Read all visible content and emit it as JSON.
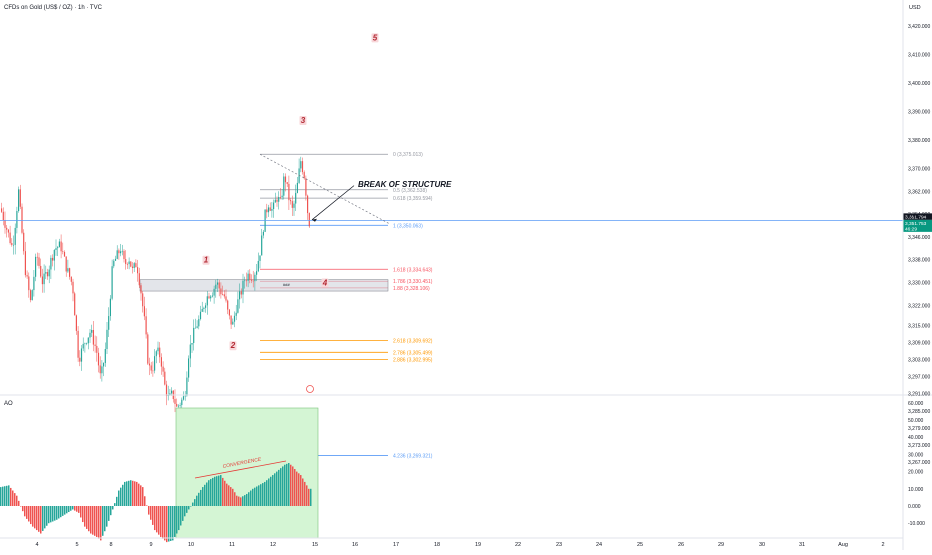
{
  "header": {
    "symbol_title": "CFDs on Gold (US$ / OZ) · 1h · TVC"
  },
  "price_axis": {
    "currency": "USD",
    "ticks": [
      "3,420.000",
      "3,410.000",
      "3,400.000",
      "3,390.000",
      "3,380.000",
      "3,370.000",
      "3,362.000",
      "3,354.000",
      "3,346.000",
      "3,338.000",
      "3,330.000",
      "3,322.000",
      "3,315.000",
      "3,309.000",
      "3,303.000",
      "3,297.000",
      "3,291.000",
      "3,285.000",
      "3,279.000",
      "3,273.000",
      "3,267.000"
    ],
    "last_price_label": "3,351.794",
    "current_price_label": "3,351.753",
    "countdown_label": "46:29"
  },
  "ao_panel": {
    "title": "AO",
    "ticks": [
      "60.000",
      "50.000",
      "40.000",
      "30.000",
      "20.000",
      "10.000",
      "0.000",
      "-10.000"
    ],
    "annotation": "CONVERGENCE"
  },
  "time_axis": {
    "labels": [
      "4",
      "5",
      "8",
      "9",
      "10",
      "11",
      "12",
      "15",
      "16",
      "17",
      "18",
      "19",
      "22",
      "23",
      "24",
      "25",
      "26",
      "29",
      "30",
      "31",
      "Aug",
      "2"
    ]
  },
  "annotations": {
    "wave_labels": [
      "1",
      "2",
      "3",
      "4",
      "5"
    ],
    "break_of_structure": "BREAK OF STRUCTURE",
    "small_box_label": "###",
    "fib_levels": [
      {
        "label": "0 (3,375.013)",
        "price": 3375.013,
        "color": "#9598a1"
      },
      {
        "label": "0.5 (3,362.538)",
        "price": 3362.538,
        "color": "#9598a1"
      },
      {
        "label": "0.618 (3,359.594)",
        "price": 3359.594,
        "color": "#9598a1"
      },
      {
        "label": "1 (3,350.063)",
        "price": 3350.063,
        "color": "#5b9cf6"
      },
      {
        "label": "1.618 (3,334.643)",
        "price": 3334.643,
        "color": "#f7525f"
      },
      {
        "label": "1.786 (3,330.451)",
        "price": 3330.451,
        "color": "#f7525f"
      },
      {
        "label": "1.88 (3,328.106)",
        "price": 3328.106,
        "color": "#f7525f"
      },
      {
        "label": "2.618 (3,309.692)",
        "price": 3309.692,
        "color": "#ff9800"
      },
      {
        "label": "2.786 (3,305.499)",
        "price": 3305.499,
        "color": "#ff9800"
      },
      {
        "label": "2.886 (3,302.995)",
        "price": 3302.995,
        "color": "#ff9800"
      },
      {
        "label": "4.236 (3,269.321)",
        "price": 3269.321,
        "color": "#5b9cf6"
      }
    ]
  },
  "colors": {
    "up": "#26a69a",
    "down": "#ef5350",
    "ao_up": "#26a69a",
    "ao_down": "#ef5350",
    "price_line": "#5b9cf6",
    "convergence_box": "#d4f5d4"
  },
  "chart_data": {
    "type": "candlestick",
    "title": "CFDs on Gold (US$ / OZ) · 1h · TVC",
    "ylim": [
      3264,
      3428
    ],
    "close_path": [
      [
        0,
        3356
      ],
      [
        6,
        3349
      ],
      [
        12,
        3342
      ],
      [
        18,
        3362
      ],
      [
        24,
        3336
      ],
      [
        30,
        3323
      ],
      [
        36,
        3340
      ],
      [
        42,
        3330
      ],
      [
        48,
        3335
      ],
      [
        54,
        3342
      ],
      [
        60,
        3343
      ],
      [
        66,
        3335
      ],
      [
        72,
        3329
      ],
      [
        78,
        3303
      ],
      [
        84,
        3309
      ],
      [
        90,
        3313
      ],
      [
        96,
        3306
      ],
      [
        100,
        3296
      ],
      [
        104,
        3304
      ],
      [
        108,
        3318
      ],
      [
        112,
        3336
      ],
      [
        116,
        3339
      ],
      [
        120,
        3342
      ],
      [
        124,
        3336
      ],
      [
        128,
        3339
      ],
      [
        132,
        3334
      ],
      [
        136,
        3337
      ],
      [
        140,
        3328
      ],
      [
        144,
        3316
      ],
      [
        148,
        3300
      ],
      [
        152,
        3300
      ],
      [
        156,
        3306
      ],
      [
        160,
        3304
      ],
      [
        164,
        3294
      ],
      [
        168,
        3289
      ],
      [
        172,
        3291
      ],
      [
        176,
        3286
      ],
      [
        180,
        3288
      ],
      [
        184,
        3290
      ],
      [
        188,
        3305
      ],
      [
        192,
        3311
      ],
      [
        196,
        3315
      ],
      [
        200,
        3318
      ],
      [
        204,
        3323
      ],
      [
        208,
        3326
      ],
      [
        212,
        3327
      ],
      [
        216,
        3330
      ],
      [
        220,
        3327
      ],
      [
        224,
        3325
      ],
      [
        228,
        3318
      ],
      [
        232,
        3315
      ],
      [
        236,
        3322
      ],
      [
        240,
        3326
      ],
      [
        244,
        3331
      ],
      [
        248,
        3333
      ],
      [
        252,
        3332
      ],
      [
        256,
        3335
      ],
      [
        260,
        3342
      ],
      [
        264,
        3353
      ],
      [
        268,
        3358
      ],
      [
        272,
        3355
      ],
      [
        276,
        3360
      ],
      [
        280,
        3358
      ],
      [
        284,
        3368
      ],
      [
        288,
        3360
      ],
      [
        292,
        3355
      ],
      [
        296,
        3362
      ],
      [
        300,
        3373
      ],
      [
        304,
        3367
      ],
      [
        308,
        3351
      ]
    ],
    "ao_path": [
      [
        0,
        11
      ],
      [
        8,
        12
      ],
      [
        16,
        6
      ],
      [
        24,
        -6
      ],
      [
        32,
        -12
      ],
      [
        40,
        -16
      ],
      [
        48,
        -10
      ],
      [
        56,
        -8
      ],
      [
        64,
        -5
      ],
      [
        72,
        -2
      ],
      [
        78,
        -4
      ],
      [
        84,
        -12
      ],
      [
        90,
        -16
      ],
      [
        96,
        -18
      ],
      [
        100,
        -20
      ],
      [
        106,
        -12
      ],
      [
        112,
        -2
      ],
      [
        118,
        9
      ],
      [
        124,
        14
      ],
      [
        130,
        15
      ],
      [
        136,
        14
      ],
      [
        142,
        11
      ],
      [
        148,
        -5
      ],
      [
        154,
        -14
      ],
      [
        160,
        -18
      ],
      [
        166,
        -21
      ],
      [
        172,
        -20
      ],
      [
        178,
        -14
      ],
      [
        184,
        -6
      ],
      [
        190,
        0
      ],
      [
        196,
        6
      ],
      [
        202,
        11
      ],
      [
        208,
        15
      ],
      [
        214,
        17
      ],
      [
        220,
        18
      ],
      [
        226,
        13
      ],
      [
        232,
        10
      ],
      [
        236,
        6
      ],
      [
        240,
        5
      ],
      [
        246,
        7
      ],
      [
        252,
        10
      ],
      [
        258,
        12
      ],
      [
        264,
        14
      ],
      [
        270,
        17
      ],
      [
        276,
        20
      ],
      [
        280,
        22
      ],
      [
        284,
        24
      ],
      [
        288,
        25
      ],
      [
        292,
        23
      ],
      [
        296,
        20
      ],
      [
        300,
        18
      ],
      [
        304,
        14
      ],
      [
        308,
        10
      ]
    ]
  }
}
